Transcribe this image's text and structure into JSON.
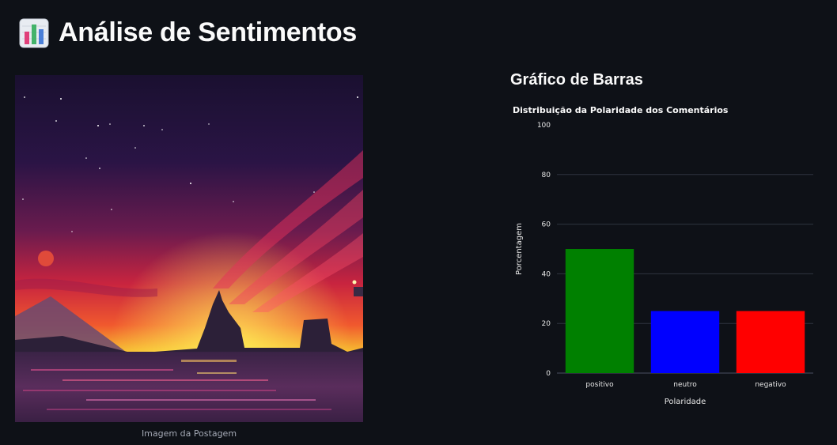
{
  "header": {
    "icon": "bar-chart-icon",
    "title": "Análise de Sentimentos"
  },
  "post": {
    "caption": "Imagem da Postagem"
  },
  "chart_section": {
    "header": "Gráfico de Barras"
  },
  "chart_data": {
    "type": "bar",
    "title": "Distribuição da Polaridade dos Comentários",
    "xlabel": "Polaridade",
    "ylabel": "Porcentagem",
    "categories": [
      "positivo",
      "neutro",
      "negativo"
    ],
    "values": [
      50,
      25,
      25
    ],
    "colors": [
      "#008000",
      "#0000ff",
      "#ff0000"
    ],
    "ylim": [
      0,
      100
    ],
    "yticks": [
      0,
      20,
      40,
      60,
      80,
      100
    ],
    "grid": true,
    "gridline_color": "#2f3440"
  }
}
